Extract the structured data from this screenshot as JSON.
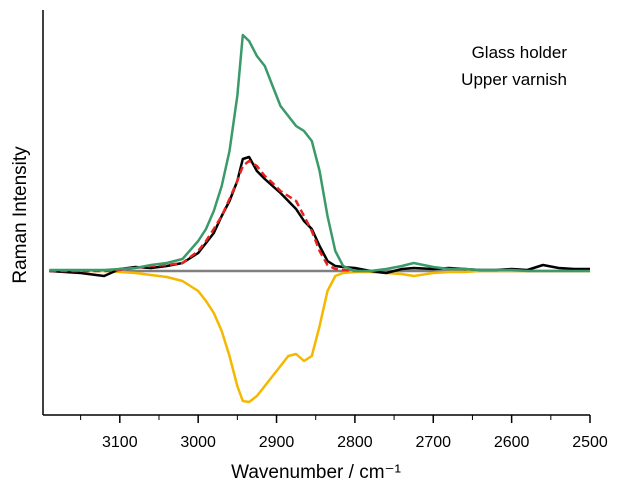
{
  "chart_data": {
    "type": "line",
    "x_label": "Wavenumber / cm⁻¹",
    "y_label": "Raman Intensity",
    "annotations": [
      "Glass holder",
      "Upper varnish"
    ],
    "x": [
      3190,
      3150,
      3120,
      3100,
      3080,
      3060,
      3040,
      3020,
      3000,
      2990,
      2980,
      2970,
      2960,
      2950,
      2943,
      2935,
      2925,
      2915,
      2905,
      2895,
      2885,
      2875,
      2865,
      2855,
      2845,
      2835,
      2825,
      2815,
      2800,
      2780,
      2760,
      2740,
      2725,
      2700,
      2680,
      2660,
      2640,
      2620,
      2600,
      2580,
      2560,
      2540,
      2520,
      2500
    ],
    "series": [
      {
        "color": "#808080",
        "dash": false,
        "values": [
          null,
          null,
          0,
          0,
          0,
          0,
          0,
          0,
          0,
          0,
          0,
          0,
          0,
          0,
          0,
          0,
          0,
          0,
          0,
          0,
          0,
          0,
          0,
          0,
          0,
          0,
          0,
          0,
          0,
          0,
          0,
          0,
          0,
          0,
          0,
          0,
          0,
          0,
          0,
          0,
          0,
          0,
          0,
          0
        ]
      },
      {
        "color": "#f5b800",
        "dash": false,
        "values": [
          0,
          0,
          0,
          -0.01,
          -0.02,
          -0.04,
          -0.06,
          -0.1,
          -0.2,
          -0.3,
          -0.42,
          -0.6,
          -0.85,
          -1.15,
          -1.3,
          -1.31,
          -1.25,
          -1.15,
          -1.05,
          -0.95,
          -0.85,
          -0.83,
          -0.9,
          -0.85,
          -0.55,
          -0.2,
          -0.05,
          -0.02,
          -0.01,
          -0.01,
          -0.02,
          -0.03,
          -0.05,
          -0.02,
          -0.01,
          -0.01,
          0,
          0,
          0,
          0,
          0,
          0,
          0,
          0
        ]
      },
      {
        "color": "#000000",
        "dash": false,
        "values": [
          0,
          -0.02,
          -0.05,
          0.02,
          0.04,
          0.03,
          0.05,
          0.08,
          0.18,
          0.28,
          0.38,
          0.55,
          0.7,
          0.9,
          1.12,
          1.14,
          1.0,
          0.92,
          0.85,
          0.78,
          0.7,
          0.62,
          0.5,
          0.42,
          0.25,
          0.1,
          0.05,
          0.04,
          0.03,
          0,
          -0.02,
          0.02,
          0.03,
          0.02,
          0.03,
          0.02,
          0.01,
          0.01,
          0.02,
          0.01,
          0.06,
          0.03,
          0.02,
          0.02
        ]
      },
      {
        "color": "#e8231e",
        "dash": true,
        "values": [
          0,
          0,
          0,
          0.01,
          0.03,
          0.05,
          0.06,
          0.08,
          0.2,
          0.3,
          0.42,
          0.55,
          0.72,
          0.9,
          1.05,
          1.1,
          1.05,
          0.95,
          0.88,
          0.8,
          0.75,
          0.7,
          0.55,
          0.4,
          0.2,
          0.06,
          0.02,
          0.01,
          0,
          null,
          null,
          null,
          null,
          null,
          null,
          null,
          null,
          null,
          null,
          null,
          null,
          null,
          null,
          null
        ]
      },
      {
        "color": "#3a9a6a",
        "dash": false,
        "values": [
          0.01,
          0.01,
          0.01,
          0.02,
          0.03,
          0.06,
          0.08,
          0.12,
          0.3,
          0.42,
          0.6,
          0.85,
          1.2,
          1.75,
          2.36,
          2.3,
          2.15,
          2.05,
          1.85,
          1.65,
          1.55,
          1.45,
          1.4,
          1.3,
          1,
          0.55,
          0.2,
          0.05,
          0,
          0,
          0.02,
          0.05,
          0.08,
          0.04,
          0.02,
          0.02,
          0.01,
          0.01,
          0.01,
          0,
          0,
          0,
          0,
          0
        ]
      }
    ],
    "xlim": [
      3198,
      2500
    ],
    "xticks": [
      3100,
      3000,
      2900,
      2800,
      2700,
      2600,
      2500
    ],
    "xminorticks": [
      3150,
      3050,
      2950,
      2850,
      2750,
      2650,
      2550
    ],
    "ylim": [
      -1.44,
      2.61
    ]
  }
}
